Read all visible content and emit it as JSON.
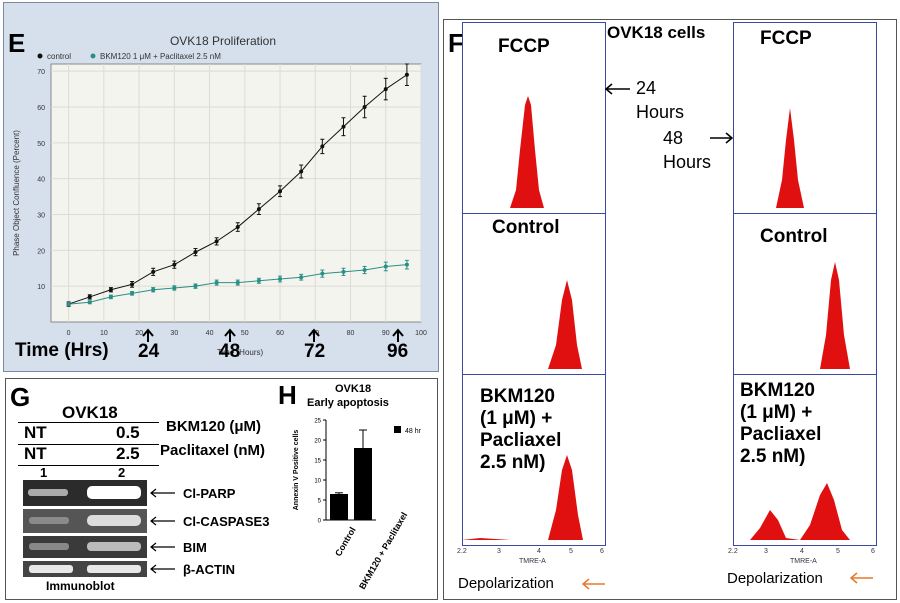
{
  "panelE": {
    "letter": "E",
    "chart_data": {
      "type": "line",
      "title": "OVK18 Proliferation",
      "xlabel": "Time (Hours)",
      "ylabel": "Phase Object Confluence (Percent)",
      "xlim": [
        -5,
        100
      ],
      "ylim": [
        0,
        72
      ],
      "xticks": [
        "0",
        "10",
        "20",
        "30",
        "40",
        "50",
        "60",
        "70",
        "80",
        "90",
        "100"
      ],
      "yticks": [
        "10",
        "20",
        "30",
        "40",
        "50",
        "60",
        "70"
      ],
      "series": [
        {
          "name": "control",
          "color": "#111111",
          "x": [
            0,
            6,
            12,
            18,
            24,
            30,
            36,
            42,
            48,
            54,
            60,
            66,
            72,
            78,
            84,
            90,
            96
          ],
          "y": [
            5,
            7,
            9,
            10.5,
            14,
            16,
            19.5,
            22.5,
            26.5,
            31.5,
            36.5,
            42,
            49,
            54.5,
            60,
            65,
            69
          ],
          "err": [
            0.6,
            0.6,
            0.6,
            0.8,
            1,
            1,
            1,
            1,
            1.2,
            1.5,
            1.5,
            1.8,
            2,
            2.5,
            3,
            3,
            3
          ]
        },
        {
          "name": "BKM120  1 μM + Paclitaxel  2.5 nM",
          "color": "#2a8f86",
          "x": [
            0,
            6,
            12,
            18,
            24,
            30,
            36,
            42,
            48,
            54,
            60,
            66,
            72,
            78,
            84,
            90,
            96
          ],
          "y": [
            5,
            5.5,
            7,
            8,
            9,
            9.5,
            10,
            11,
            11,
            11.5,
            12,
            12.5,
            13.5,
            14,
            14.5,
            15.5,
            16
          ],
          "err": [
            0.4,
            0.4,
            0.5,
            0.5,
            0.6,
            0.6,
            0.6,
            0.7,
            0.7,
            0.7,
            0.8,
            0.8,
            1,
            1,
            1,
            1.2,
            1.2
          ]
        }
      ]
    },
    "time_label": "Time (Hrs)",
    "time_marks": [
      "24",
      "48",
      "72",
      "96"
    ]
  },
  "panelF": {
    "letter": "F",
    "title": "OVK18 cells",
    "left_col": {
      "fccp": "FCCP",
      "control": "Control",
      "treat": [
        "BKM120",
        "(1 μM) +",
        "Pacliaxel",
        "2.5 nM)"
      ]
    },
    "right_col": {
      "fccp": "FCCP",
      "control": "Control",
      "treat": [
        "BKM120",
        "(1 μM) +",
        "Pacliaxel",
        "2.5 nM)"
      ]
    },
    "label_24": [
      "24",
      "Hours"
    ],
    "label_48": [
      "48",
      "Hours"
    ],
    "axis_title": "TMRE-A",
    "depol": "Depolarization",
    "axis_left": [
      "2.2",
      "3",
      "4",
      "5",
      "6"
    ],
    "axis_right": [
      "2.2",
      "3",
      "4",
      "5",
      "6"
    ]
  },
  "panelG": {
    "letter": "G",
    "cell": "OVK18",
    "row1": [
      "NT",
      "0.5"
    ],
    "row1_label": "BKM120 (μM)",
    "row2": [
      "NT",
      "2.5"
    ],
    "row2_label": "Paclitaxel (nM)",
    "lanes": [
      "1",
      "2"
    ],
    "bands": [
      "Cl-PARP",
      "Cl-CASPASE3",
      "BIM",
      "β-ACTIN"
    ],
    "footer": "Immunoblot"
  },
  "panelH": {
    "letter": "H",
    "title1": "OVK18",
    "title2": "Early apoptosis",
    "chart_data": {
      "type": "bar",
      "categories": [
        "Control",
        "BKM120 + Paclitaxel"
      ],
      "values": [
        6.5,
        18
      ],
      "errors": [
        0.3,
        4.5
      ],
      "ylabel": "Annexin V Positive cells",
      "ylim": [
        0,
        25
      ],
      "yticks": [
        "0",
        "5",
        "10",
        "15",
        "20",
        "25"
      ],
      "legend": "48 hr"
    }
  }
}
